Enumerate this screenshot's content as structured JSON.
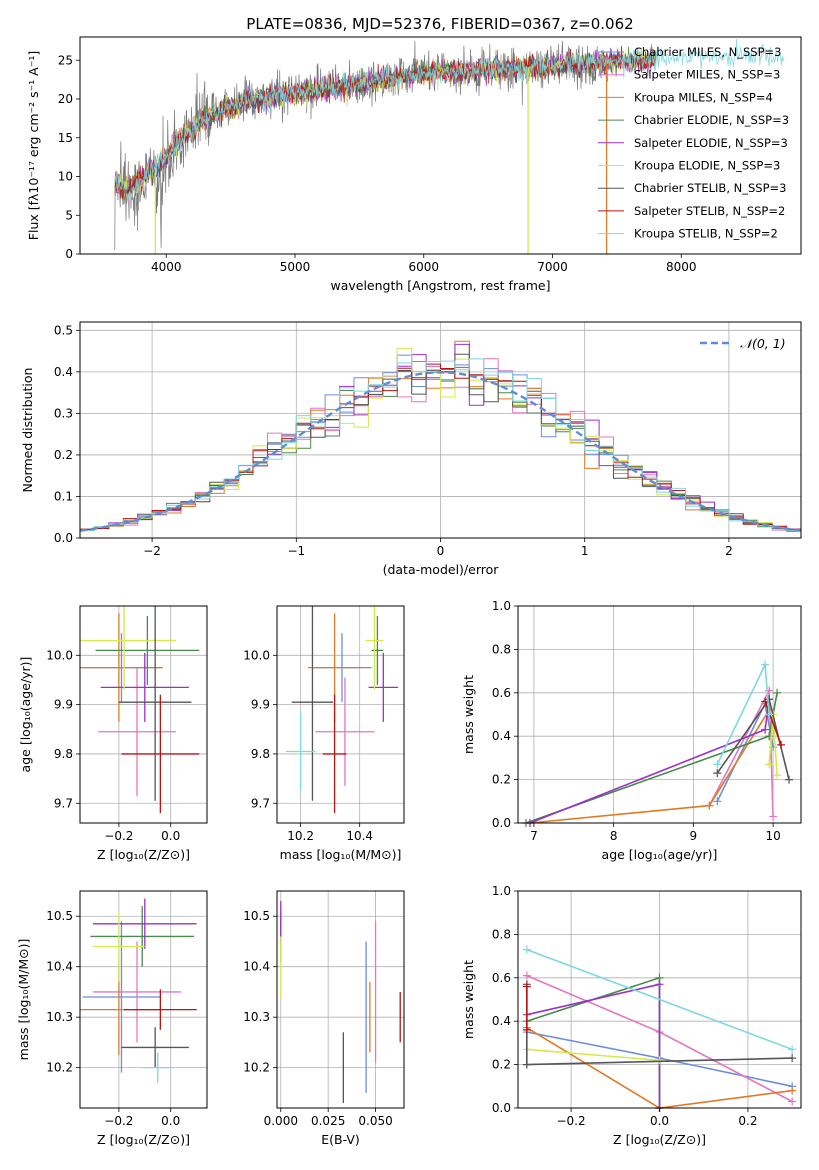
{
  "figure_title": "PLATE=0836, MJD=52376, FIBERID=0367, z=0.062",
  "palette": [
    "#6b8fd9",
    "#e377c2",
    "#e07b25",
    "#4a8a4a",
    "#9b30c8",
    "#d4e84d",
    "#555555",
    "#b81414",
    "#7fd7e0"
  ],
  "chart_data": [
    {
      "id": "spectrum",
      "type": "line",
      "xlabel": "wavelength [Angstrom, rest frame]",
      "ylabel": "Flux [fλ10⁻¹⁷ erg cm⁻² s⁻¹ A⁻¹]",
      "xlim": [
        3330,
        8930
      ],
      "ylim": [
        0,
        28
      ],
      "xticks": [
        4000,
        5000,
        6000,
        7000,
        8000
      ],
      "yticks": [
        0,
        5,
        10,
        15,
        20,
        25
      ],
      "grid": false,
      "legend_position": "top-right",
      "series": [
        {
          "name": "Chabrier MILES, N_SSP=3",
          "color": "#6b8fd9"
        },
        {
          "name": "Salpeter MILES, N_SSP=3",
          "color": "#e377c2"
        },
        {
          "name": "Kroupa MILES, N_SSP=4",
          "color": "#e07b25"
        },
        {
          "name": "Chabrier ELODIE, N_SSP=3",
          "color": "#4a8a4a"
        },
        {
          "name": "Salpeter ELODIE, N_SSP=3",
          "color": "#9b30c8"
        },
        {
          "name": "Kroupa ELODIE, N_SSP=3",
          "color": "#d4e84d"
        },
        {
          "name": "Chabrier STELIB, N_SSP=3",
          "color": "#555555"
        },
        {
          "name": "Salpeter STELIB, N_SSP=2",
          "color": "#b81414"
        },
        {
          "name": "Kroupa STELIB, N_SSP=2",
          "color": "#7fd7e0"
        }
      ],
      "continuum": {
        "x": [
          3600,
          3700,
          3800,
          3900,
          3950,
          4050,
          4150,
          4300,
          4500,
          4700,
          4900,
          5100,
          5300,
          5500,
          5700,
          5900,
          6100,
          6300,
          6500,
          6700,
          6900,
          7100,
          7300,
          7500,
          7700,
          7900,
          8100,
          8300,
          8500,
          8800
        ],
        "y": [
          9,
          8,
          9.5,
          11,
          11.5,
          13.5,
          15.5,
          17.5,
          19,
          20,
          20.5,
          21,
          21.5,
          22,
          22.5,
          23,
          23.5,
          23.5,
          23.8,
          24,
          24.2,
          24.4,
          24.6,
          24.8,
          25,
          25.2,
          25.3,
          25.4,
          25.5,
          25.6
        ]
      },
      "obs_range": [
        3600,
        7430
      ]
    },
    {
      "id": "residuals",
      "type": "line",
      "xlabel": "(data-model)/error",
      "ylabel": "Normed distribution",
      "xlim": [
        -2.5,
        2.5
      ],
      "ylim": [
        0,
        0.52
      ],
      "xticks": [
        -2,
        -1,
        0,
        1,
        2
      ],
      "xtick_labels": [
        "−2",
        "−1",
        "0",
        "1",
        "2"
      ],
      "yticks": [
        0.0,
        0.1,
        0.2,
        0.3,
        0.4,
        0.5
      ],
      "ytick_labels": [
        "0.0",
        "0.1",
        "0.2",
        "0.3",
        "0.4",
        "0.5"
      ],
      "grid": true,
      "legend_position": "top-right",
      "legend_label": "𝒩(0, 1)",
      "reference_curve": "normal(0,1)",
      "bin_width": 0.1
    },
    {
      "id": "age-vs-Z",
      "type": "scatter",
      "xlabel": "Z [log₁₀(Z/Z⊙)]",
      "ylabel": "age  [log₁₀(age/yr)]",
      "xlim": [
        -0.35,
        0.14
      ],
      "ylim": [
        9.66,
        10.1
      ],
      "xticks": [
        -0.2,
        0.0
      ],
      "xtick_labels": [
        "−0.2",
        "0.0"
      ],
      "yticks": [
        9.7,
        9.8,
        9.9,
        10.0
      ],
      "ytick_labels": [
        "9.7",
        "9.8",
        "9.9",
        "10.0"
      ],
      "grid": true,
      "points": [
        {
          "x": -0.19,
          "y": 9.975,
          "xerr": 0.15,
          "yerr": 0.07,
          "color": "#6b8fd9"
        },
        {
          "x": -0.13,
          "y": 9.845,
          "xerr": 0.15,
          "yerr": 0.13,
          "color": "#e377c2"
        },
        {
          "x": -0.2,
          "y": 9.975,
          "xerr": 0.17,
          "yerr": 0.11,
          "color": "#e07b25"
        },
        {
          "x": -0.09,
          "y": 10.01,
          "xerr": 0.2,
          "yerr": 0.07,
          "color": "#4a8a4a"
        },
        {
          "x": -0.1,
          "y": 9.935,
          "xerr": 0.17,
          "yerr": 0.07,
          "color": "#9b30c8"
        },
        {
          "x": -0.18,
          "y": 10.03,
          "xerr": 0.2,
          "yerr": 0.1,
          "color": "#d4e84d"
        },
        {
          "x": -0.06,
          "y": 9.905,
          "xerr": 0.14,
          "yerr": 0.2,
          "color": "#555555"
        },
        {
          "x": -0.04,
          "y": 9.8,
          "xerr": 0.15,
          "yerr": 0.12,
          "color": "#b81414"
        }
      ]
    },
    {
      "id": "age-vs-mass",
      "type": "scatter",
      "xlabel": "mass [log₁₀(M/M⊙)]",
      "ylabel": "",
      "xlim": [
        10.12,
        10.55
      ],
      "ylim": [
        9.66,
        10.1
      ],
      "xticks": [
        10.2,
        10.4
      ],
      "xtick_labels": [
        "10.2",
        "10.4"
      ],
      "yticks": [
        9.7,
        9.8,
        9.9,
        10.0
      ],
      "ytick_labels": [
        "9.7",
        "9.8",
        "9.9",
        "10.0"
      ],
      "grid": true,
      "points": [
        {
          "x": 10.34,
          "y": 9.975,
          "xerr": 0.1,
          "yerr": 0.07,
          "color": "#6b8fd9"
        },
        {
          "x": 10.35,
          "y": 9.845,
          "xerr": 0.1,
          "yerr": 0.11,
          "color": "#e377c2"
        },
        {
          "x": 10.315,
          "y": 9.975,
          "xerr": 0.09,
          "yerr": 0.11,
          "color": "#e07b25"
        },
        {
          "x": 10.46,
          "y": 10.01,
          "xerr": 0.02,
          "yerr": 0.07,
          "color": "#4a8a4a"
        },
        {
          "x": 10.48,
          "y": 9.935,
          "xerr": 0.05,
          "yerr": 0.07,
          "color": "#9b30c8"
        },
        {
          "x": 10.45,
          "y": 10.03,
          "xerr": 0.03,
          "yerr": 0.1,
          "color": "#d4e84d"
        },
        {
          "x": 10.24,
          "y": 9.905,
          "xerr": 0.07,
          "yerr": 0.2,
          "color": "#555555"
        },
        {
          "x": 10.315,
          "y": 9.8,
          "xerr": 0.04,
          "yerr": 0.12,
          "color": "#b81414"
        },
        {
          "x": 10.2,
          "y": 9.805,
          "xerr": 0.05,
          "yerr": 0.08,
          "color": "#7fd7e0"
        }
      ]
    },
    {
      "id": "weight-vs-age",
      "type": "line",
      "xlabel": "age  [log₁₀(age/yr)]",
      "ylabel": "mass weight",
      "xlim": [
        6.8,
        10.35
      ],
      "ylim": [
        0,
        1
      ],
      "xticks": [
        7,
        8,
        9,
        10
      ],
      "xtick_labels": [
        "7",
        "8",
        "9",
        "10"
      ],
      "yticks": [
        0,
        0.2,
        0.4,
        0.6,
        0.8,
        1.0
      ],
      "ytick_labels": [
        "0.0",
        "0.2",
        "0.4",
        "0.6",
        "0.8",
        "1.0"
      ],
      "grid": true,
      "series": [
        {
          "color": "#6b8fd9",
          "x": [
            9.3,
            9.9,
            10.0
          ],
          "y": [
            0.1,
            0.55,
            0.35
          ]
        },
        {
          "color": "#e377c2",
          "x": [
            9.2,
            9.95,
            10.0
          ],
          "y": [
            0.08,
            0.61,
            0.03
          ]
        },
        {
          "color": "#e07b25",
          "x": [
            6.95,
            9.2,
            9.95
          ],
          "y": [
            0.0,
            0.08,
            0.52
          ]
        },
        {
          "color": "#4a8a4a",
          "x": [
            6.9,
            9.95,
            10.05
          ],
          "y": [
            0.0,
            0.4,
            0.6
          ]
        },
        {
          "color": "#9b30c8",
          "x": [
            6.95,
            9.9,
            9.95
          ],
          "y": [
            0.0,
            0.43,
            0.57
          ]
        },
        {
          "color": "#d4e84d",
          "x": [
            9.95,
            10.0,
            10.05
          ],
          "y": [
            0.27,
            0.5,
            0.22
          ]
        },
        {
          "color": "#555555",
          "x": [
            9.3,
            9.95,
            10.2
          ],
          "y": [
            0.23,
            0.57,
            0.2
          ]
        },
        {
          "color": "#b81414",
          "x": [
            9.9,
            10.1
          ],
          "y": [
            0.56,
            0.36
          ]
        },
        {
          "color": "#7fd7e0",
          "x": [
            9.3,
            9.9,
            9.95
          ],
          "y": [
            0.27,
            0.73,
            0.5
          ]
        }
      ]
    },
    {
      "id": "mass-vs-Z",
      "type": "scatter",
      "xlabel": "Z [log₁₀(Z/Z⊙)]",
      "ylabel": "mass [log₁₀(M/M⊙)]",
      "xlim": [
        -0.35,
        0.14
      ],
      "ylim": [
        10.12,
        10.55
      ],
      "xticks": [
        -0.2,
        0.0
      ],
      "xtick_labels": [
        "−0.2",
        "0.0"
      ],
      "yticks": [
        10.2,
        10.3,
        10.4,
        10.5
      ],
      "ytick_labels": [
        "10.2",
        "10.3",
        "10.4",
        "10.5"
      ],
      "grid": true,
      "points": [
        {
          "x": -0.19,
          "y": 10.34,
          "xerr": 0.15,
          "yerr": 0.15,
          "color": "#6b8fd9"
        },
        {
          "x": -0.13,
          "y": 10.35,
          "xerr": 0.17,
          "yerr": 0.1,
          "color": "#e377c2"
        },
        {
          "x": -0.2,
          "y": 10.315,
          "xerr": 0.17,
          "yerr": 0.09,
          "color": "#e07b25"
        },
        {
          "x": -0.11,
          "y": 10.46,
          "xerr": 0.2,
          "yerr": 0.06,
          "color": "#4a8a4a"
        },
        {
          "x": -0.1,
          "y": 10.485,
          "xerr": 0.2,
          "yerr": 0.05,
          "color": "#9b30c8"
        },
        {
          "x": -0.2,
          "y": 10.44,
          "xerr": 0.1,
          "yerr": 0.07,
          "color": "#d4e84d"
        },
        {
          "x": -0.06,
          "y": 10.24,
          "xerr": 0.13,
          "yerr": 0.04,
          "color": "#555555"
        },
        {
          "x": -0.04,
          "y": 10.315,
          "xerr": 0.14,
          "yerr": 0.04,
          "color": "#b81414"
        },
        {
          "x": -0.05,
          "y": 10.2,
          "xerr": 0.06,
          "yerr": 0.03,
          "color": "#7fd7e0"
        }
      ]
    },
    {
      "id": "mass-vs-EBV",
      "type": "scatter",
      "xlabel": "E(B-V)",
      "ylabel": "",
      "xlim": [
        -0.002,
        0.065
      ],
      "ylim": [
        10.12,
        10.55
      ],
      "xticks": [
        0.0,
        0.025,
        0.05
      ],
      "xtick_labels": [
        "0.000",
        "0.025",
        "0.050"
      ],
      "yticks": [
        10.2,
        10.3,
        10.4,
        10.5
      ],
      "ytick_labels": [
        "10.2",
        "10.3",
        "10.4",
        "10.5"
      ],
      "grid": true,
      "points": [
        {
          "x": 0.045,
          "y": 10.3,
          "xerr": 0,
          "yerr": 0.15,
          "color": "#6b8fd9"
        },
        {
          "x": 0.05,
          "y": 10.35,
          "xerr": 0,
          "yerr": 0.14,
          "color": "#e377c2"
        },
        {
          "x": 0.047,
          "y": 10.3,
          "xerr": 0,
          "yerr": 0.07,
          "color": "#e07b25"
        },
        {
          "x": 0.0,
          "y": 10.46,
          "xerr": 0,
          "yerr": 0.05,
          "color": "#4a8a4a"
        },
        {
          "x": 0.0,
          "y": 10.49,
          "xerr": 0,
          "yerr": 0.04,
          "color": "#9b30c8"
        },
        {
          "x": 0.0,
          "y": 10.4,
          "xerr": 0,
          "yerr": 0.06,
          "color": "#d4e84d"
        },
        {
          "x": 0.033,
          "y": 10.2,
          "xerr": 0,
          "yerr": 0.07,
          "color": "#555555"
        },
        {
          "x": 0.063,
          "y": 10.3,
          "xerr": 0,
          "yerr": 0.05,
          "color": "#b81414"
        }
      ]
    },
    {
      "id": "weight-vs-Z",
      "type": "line",
      "xlabel": "Z [log₁₀(Z/Z⊙)]",
      "ylabel": "mass weight",
      "xlim": [
        -0.32,
        0.32
      ],
      "ylim": [
        0,
        1
      ],
      "xticks": [
        -0.2,
        0.0,
        0.2
      ],
      "xtick_labels": [
        "−0.2",
        "0.0",
        "0.2"
      ],
      "yticks": [
        0,
        0.2,
        0.4,
        0.6,
        0.8,
        1.0
      ],
      "ytick_labels": [
        "0.0",
        "0.2",
        "0.4",
        "0.6",
        "0.8",
        "1.0"
      ],
      "grid": true,
      "series": [
        {
          "color": "#6b8fd9",
          "x": [
            -0.3,
            0.0,
            0.3
          ],
          "y": [
            0.35,
            0.23,
            0.1
          ]
        },
        {
          "color": "#e377c2",
          "x": [
            -0.3,
            0.0,
            0.3
          ],
          "y": [
            0.61,
            0.35,
            0.03
          ]
        },
        {
          "color": "#e07b25",
          "x": [
            -0.3,
            0.0,
            0.3
          ],
          "y": [
            0.37,
            0.0,
            0.08
          ]
        },
        {
          "color": "#4a8a4a",
          "x": [
            -0.3,
            0.0,
            0.0
          ],
          "y": [
            0.4,
            0.6,
            0.0
          ]
        },
        {
          "color": "#9b30c8",
          "x": [
            -0.3,
            0.0,
            0.0
          ],
          "y": [
            0.43,
            0.57,
            0.0
          ]
        },
        {
          "color": "#d4e84d",
          "x": [
            -0.3,
            0.0
          ],
          "y": [
            0.27,
            0.22
          ]
        },
        {
          "color": "#555555",
          "x": [
            -0.3,
            -0.3,
            0.3
          ],
          "y": [
            0.57,
            0.2,
            0.23
          ]
        },
        {
          "color": "#b81414",
          "x": [
            -0.3,
            -0.3
          ],
          "y": [
            0.56,
            0.36
          ]
        },
        {
          "color": "#7fd7e0",
          "x": [
            -0.3,
            0.3
          ],
          "y": [
            0.73,
            0.27
          ]
        }
      ]
    }
  ]
}
